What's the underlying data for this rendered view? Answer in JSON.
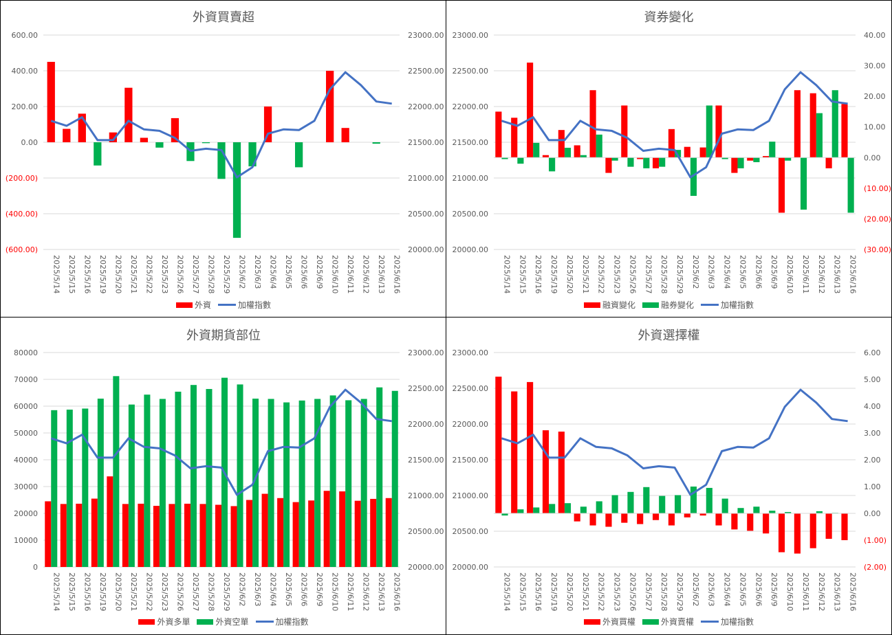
{
  "dates": [
    "2025/5/14",
    "2025/5/15",
    "2025/5/16",
    "2025/5/19",
    "2025/5/20",
    "2025/5/21",
    "2025/5/22",
    "2025/5/23",
    "2025/5/26",
    "2025/5/27",
    "2025/5/28",
    "2025/5/29",
    "2025/6/2",
    "2025/6/3",
    "2025/6/4",
    "2025/6/5",
    "2025/6/6",
    "2025/6/9",
    "2025/6/10",
    "2025/6/11",
    "2025/6/12",
    "2025/6/13",
    "2025/6/16"
  ],
  "colors": {
    "red": "#ff0000",
    "green": "#00b050",
    "blue": "#4472c4",
    "negative": "#ff0000",
    "axis_text": "#595959",
    "grid": "#d9d9d9"
  },
  "chart_data": [
    {
      "id": "fi",
      "type": "bar",
      "title": "外資買賣超",
      "left_ticks": [
        "600.00",
        "400.00",
        "200.00",
        "0.00",
        "(200.00)",
        "(400.00)",
        "(600.00)"
      ],
      "right_ticks": [
        "23000.00",
        "22500.00",
        "22000.00",
        "21500.00",
        "21000.00",
        "20500.00",
        "20000.00"
      ],
      "ylim_left": [
        -600,
        600
      ],
      "ylim_right": [
        20000,
        23000
      ],
      "series": [
        {
          "name": "外資",
          "kind": "bar",
          "color_key": "pos_neg",
          "values": [
            450,
            75,
            160,
            -130,
            55,
            305,
            25,
            -30,
            135,
            -105,
            -5,
            -205,
            -535,
            -135,
            200,
            0,
            -140,
            0,
            400,
            80,
            0,
            -8,
            0
          ]
        },
        {
          "name": "加權指數",
          "kind": "line",
          "axis": "right",
          "color_key": "blue",
          "values": [
            21800,
            21730,
            21850,
            21530,
            21530,
            21800,
            21680,
            21660,
            21560,
            21380,
            21410,
            21390,
            21010,
            21150,
            21620,
            21680,
            21670,
            21800,
            22240,
            22480,
            22300,
            22070,
            22040
          ]
        }
      ]
    },
    {
      "id": "margin",
      "type": "bar",
      "title": "資券變化",
      "left_ticks": [
        "23000.00",
        "22500.00",
        "22000.00",
        "21500.00",
        "21000.00",
        "20500.00",
        "20000.00"
      ],
      "right_ticks": [
        "40.00",
        "30.00",
        "20.00",
        "10.00",
        "0.00",
        "(10.00)",
        "(20.00)",
        "(30.00)"
      ],
      "ylim_left": [
        20000,
        23000
      ],
      "ylim_right": [
        -30,
        40
      ],
      "series": [
        {
          "name": "融資變化",
          "kind": "bar",
          "color_key": "red",
          "values": [
            15,
            13,
            31,
            0.8,
            9,
            4,
            22,
            -5,
            17,
            -0.5,
            -3.5,
            9.3,
            3.5,
            3.3,
            17,
            -5,
            -1,
            0.5,
            -18,
            22,
            21,
            -3.5,
            17.5
          ]
        },
        {
          "name": "融券變化",
          "kind": "bar",
          "color_key": "green",
          "values": [
            -0.5,
            -2,
            4.8,
            -4.5,
            3.2,
            0.8,
            7.5,
            -1,
            -3,
            -3.5,
            -3,
            2.5,
            -12.5,
            17,
            -0.5,
            -3.5,
            -1.5,
            5.2,
            -1,
            -17,
            14.5,
            22,
            -18
          ]
        },
        {
          "name": "加權指數",
          "kind": "line",
          "axis": "left",
          "color_key": "blue",
          "values": [
            21800,
            21730,
            21850,
            21530,
            21530,
            21800,
            21680,
            21660,
            21560,
            21380,
            21410,
            21390,
            21010,
            21150,
            21620,
            21680,
            21670,
            21800,
            22240,
            22480,
            22300,
            22070,
            22040
          ]
        }
      ]
    },
    {
      "id": "futures",
      "type": "bar",
      "title": "外資期貨部位",
      "left_ticks": [
        "80000",
        "70000",
        "60000",
        "50000",
        "40000",
        "30000",
        "20000",
        "10000",
        "0"
      ],
      "right_ticks": [
        "23000.00",
        "22500.00",
        "22000.00",
        "21500.00",
        "21000.00",
        "20500.00",
        "20000.00"
      ],
      "ylim_left": [
        0,
        80000
      ],
      "ylim_right": [
        20000,
        23000
      ],
      "series": [
        {
          "name": "外資多單",
          "kind": "bar",
          "color_key": "red",
          "values": [
            24500,
            23500,
            23600,
            25500,
            33800,
            23500,
            23600,
            22800,
            23500,
            23600,
            23500,
            23200,
            22700,
            25000,
            27300,
            25700,
            24200,
            24800,
            28400,
            28200,
            24700,
            25400,
            25700
          ]
        },
        {
          "name": "外資空單",
          "kind": "bar",
          "color_key": "green",
          "values": [
            58500,
            58700,
            59100,
            62800,
            71200,
            60600,
            64300,
            62700,
            65400,
            67900,
            66400,
            70600,
            68100,
            62800,
            62700,
            61400,
            62100,
            62700,
            64000,
            62200,
            62700,
            67000,
            65700
          ]
        },
        {
          "name": "加權指數",
          "kind": "line",
          "axis": "right",
          "color_key": "blue",
          "values": [
            21800,
            21730,
            21850,
            21530,
            21530,
            21800,
            21680,
            21660,
            21560,
            21380,
            21410,
            21390,
            21010,
            21150,
            21620,
            21680,
            21670,
            21800,
            22240,
            22480,
            22300,
            22070,
            22040
          ]
        }
      ]
    },
    {
      "id": "options",
      "type": "bar",
      "title": "外資選擇權",
      "left_ticks": [
        "23000.00",
        "22500.00",
        "22000.00",
        "21500.00",
        "21000.00",
        "20500.00",
        "20000.00"
      ],
      "right_ticks": [
        "6.00",
        "5.00",
        "4.00",
        "3.00",
        "2.00",
        "1.00",
        "0.00",
        "(1.00)",
        "(2.00)"
      ],
      "ylim_left": [
        20000,
        23000
      ],
      "ylim_right": [
        -2,
        6
      ],
      "series": [
        {
          "name": "外資買權",
          "kind": "bar",
          "color_key": "red",
          "values": [
            5.1,
            4.55,
            4.9,
            3.1,
            3.05,
            -0.3,
            -0.45,
            -0.5,
            -0.35,
            -0.4,
            -0.25,
            -0.45,
            -0.15,
            -0.08,
            -0.45,
            -0.6,
            -0.65,
            -0.75,
            -1.45,
            -1.5,
            -1.3,
            -0.95,
            -1.0
          ]
        },
        {
          "name": "外資賣權",
          "kind": "bar",
          "color_key": "green",
          "values": [
            -0.08,
            0.15,
            0.22,
            0.35,
            0.38,
            0.25,
            0.45,
            0.68,
            0.8,
            0.98,
            0.65,
            0.68,
            1.0,
            0.95,
            0.55,
            0.2,
            0.25,
            0.1,
            0.05,
            0.0,
            0.08,
            0.02,
            0.0
          ]
        },
        {
          "name": "加權指數",
          "kind": "line",
          "axis": "left",
          "color_key": "blue",
          "values": [
            21800,
            21730,
            21850,
            21530,
            21530,
            21800,
            21680,
            21660,
            21560,
            21380,
            21410,
            21390,
            21010,
            21150,
            21620,
            21680,
            21670,
            21800,
            22240,
            22480,
            22300,
            22070,
            22040
          ]
        }
      ]
    }
  ]
}
